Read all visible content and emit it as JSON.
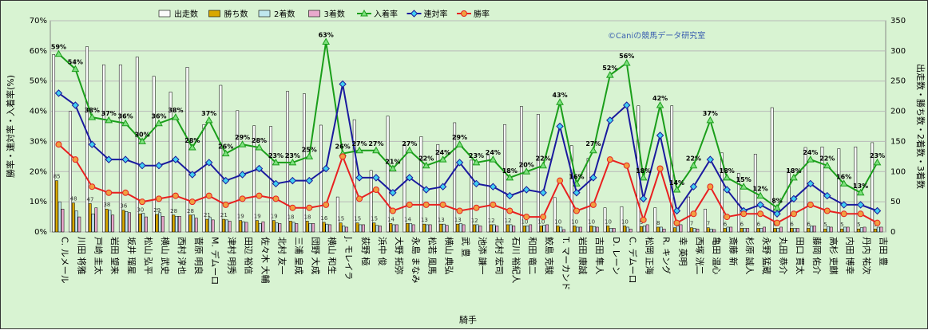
{
  "chart_data": {
    "type": "bar",
    "watermark": "©Caniの競馬データ研究室",
    "xlabel": "騎手",
    "ylabel_left": "勝率・連対率・入着率(%)",
    "ylabel_right": "出走数・勝ち数・2着数・3着数",
    "y_left_lim": [
      0,
      70
    ],
    "y_left_ticks": [
      "0%",
      "10%",
      "20%",
      "30%",
      "40%",
      "50%",
      "60%",
      "70%"
    ],
    "y_right_lim": [
      0,
      350
    ],
    "y_right_ticks": [
      "0",
      "50",
      "100",
      "150",
      "200",
      "250",
      "300",
      "350"
    ],
    "legend": [
      "出走数",
      "勝ち数",
      "2着数",
      "3着数",
      "入着率",
      "連対率",
      "勝率"
    ],
    "colors": {
      "出走数": "#fafafa",
      "勝ち数": "#d8a800",
      "2着数": "#bfe7ee",
      "3着数": "#e8a8cc",
      "入着率": "#1a9e1a",
      "連対率": "#1a1a9e",
      "勝率": "#e82020",
      "bar_border": "#000000",
      "background": "#d8f3d2"
    },
    "categories": [
      "C. ルメール",
      "川田 将雅",
      "戸崎 圭太",
      "岩田 望来",
      "坂井 瑠星",
      "松山 弘平",
      "横山 武史",
      "西村 淳也",
      "菅原 明良",
      "M. デムーロ",
      "津村 明秀",
      "田辺 裕信",
      "佐々木 大輔",
      "北村 友一",
      "三浦 皇成",
      "団野 大成",
      "横山 和生",
      "J. モレイラ",
      "荻野 極",
      "浜中 俊",
      "大野 拓弥",
      "永島 まなみ",
      "松若 風馬",
      "横山 典弘",
      "武 豊",
      "池添 謙一",
      "北村 宏司",
      "石川 裕紀人",
      "和田 竜二",
      "鮫島 克駿",
      "T. マーカンド",
      "岩田 康誠",
      "吉田 隼人",
      "D. レーン",
      "C. デムーロ",
      "松岡 正海",
      "R. キング",
      "幸 英明",
      "西塚 洸二",
      "亀田 温心",
      "斎藤 新",
      "杉原 誠人",
      "永野 猛蔵",
      "丸田 恭介",
      "田口 貫太",
      "藤岡 佑介",
      "高杉 吏麒",
      "内田 博幸",
      "丹内 祐次",
      "吉田 豊"
    ],
    "series": [
      {
        "name": "出走数",
        "axis": "right",
        "values": [
          294,
          200,
          307,
          277,
          277,
          290,
          258,
          232,
          273,
          178,
          243,
          201,
          176,
          175,
          233,
          229,
          177,
          58,
          186,
          102,
          192,
          145,
          158,
          145,
          181,
          119,
          127,
          178,
          208,
          195,
          57,
          143,
          122,
          40,
          42,
          209,
          40,
          209,
          58,
          38,
          131,
          97,
          129,
          206,
          101,
          140,
          141,
          138,
          141,
          148
        ]
      },
      {
        "name": "勝ち数",
        "axis": "right",
        "values": [
          85,
          48,
          47,
          38,
          36,
          30,
          29,
          28,
          28,
          21,
          21,
          19,
          19,
          19,
          18,
          18,
          16,
          15,
          15,
          15,
          14,
          14,
          13,
          13,
          13,
          12,
          12,
          12,
          10,
          10,
          10,
          10,
          10,
          10,
          10,
          9,
          8,
          7,
          7,
          7,
          6,
          6,
          6,
          6,
          6,
          6,
          5,
          5,
          5,
          5
        ]
      },
      {
        "name": "2着数",
        "axis": "right",
        "values": [
          50,
          35,
          30,
          36,
          34,
          31,
          32,
          26,
          28,
          24,
          20,
          17,
          14,
          15,
          16,
          14,
          13,
          10,
          12,
          11,
          12,
          14,
          12,
          13,
          14,
          12,
          12,
          12,
          10,
          11,
          8,
          8,
          9,
          6,
          8,
          10,
          8,
          10,
          6,
          5,
          8,
          6,
          6,
          6,
          6,
          10,
          9,
          8,
          7,
          8
        ]
      },
      {
        "name": "3着数",
        "axis": "right",
        "values": [
          38,
          25,
          40,
          28,
          32,
          25,
          26,
          26,
          23,
          20,
          18,
          16,
          17,
          14,
          14,
          14,
          12,
          8,
          12,
          10,
          12,
          12,
          12,
          11,
          12,
          10,
          10,
          10,
          12,
          12,
          4,
          8,
          8,
          6,
          5,
          12,
          5,
          12,
          5,
          4,
          8,
          6,
          8,
          8,
          6,
          10,
          8,
          8,
          8,
          8
        ]
      },
      {
        "name": "入着率",
        "axis": "left",
        "values": [
          59,
          54,
          38,
          37,
          36,
          30,
          36,
          38,
          28,
          37,
          26,
          29,
          28,
          23,
          23,
          25,
          63,
          26,
          27,
          27,
          21,
          27,
          22,
          24,
          29,
          23,
          24,
          18,
          20,
          22,
          43,
          16,
          27,
          52,
          56,
          18,
          42,
          14,
          22,
          37,
          18,
          15,
          12,
          8,
          18,
          24,
          22,
          16,
          13,
          23
        ]
      },
      {
        "name": "連対率",
        "axis": "left",
        "values": [
          46,
          42,
          29,
          24,
          24,
          22,
          22,
          24,
          19,
          23,
          17,
          19,
          21,
          16,
          17,
          17,
          21,
          49,
          18,
          18,
          13,
          18,
          14,
          15,
          23,
          16,
          15,
          12,
          14,
          13,
          35,
          13,
          18,
          37,
          42,
          11,
          32,
          7,
          15,
          24,
          14,
          7,
          9,
          6,
          11,
          16,
          12,
          9,
          9,
          7
        ]
      },
      {
        "name": "勝率",
        "axis": "left",
        "values": [
          29,
          24,
          15,
          13,
          13,
          10,
          11,
          12,
          10,
          12,
          9,
          11,
          12,
          11,
          8,
          8,
          9,
          25,
          11,
          14,
          7,
          9,
          9,
          9,
          7,
          8,
          9,
          7,
          5,
          5,
          17,
          7,
          9,
          24,
          22,
          4,
          21,
          3,
          6,
          15,
          5,
          6,
          6,
          3,
          6,
          9,
          7,
          6,
          6,
          3
        ]
      }
    ],
    "rate_labels_top": [
      "59%",
      "54%",
      "38%",
      "37%",
      "36%",
      "30%",
      "36%",
      "38%",
      "28%",
      "37%",
      "26%",
      "29%",
      "28%",
      "23%",
      "23%",
      "25%",
      "63%",
      "26%",
      "27%",
      "27%",
      "21%",
      "27%",
      "22%",
      "24%",
      "29%",
      "23%",
      "24%",
      "18%",
      "20%",
      "22%",
      "43%",
      "16%",
      "27%",
      "52%",
      "56%",
      "18%",
      "42%",
      "14%",
      "22%",
      "37%",
      "18%",
      "15%",
      "12%",
      "8%",
      "18%",
      "24%",
      "22%",
      "16%",
      "13%",
      "23%"
    ],
    "win_labels": [
      "85",
      "48",
      "47",
      "38",
      "36",
      "30",
      "29",
      "28",
      "28",
      "21",
      "21",
      "19",
      "19",
      "19",
      "18",
      "18",
      "16",
      "15",
      "15",
      "15",
      "14",
      "14",
      "13",
      "13",
      "13",
      "12",
      "12",
      "12",
      "10",
      "10",
      "10",
      "10",
      "10",
      "10",
      "10",
      "9",
      "8",
      "7",
      "7",
      "7",
      "6",
      "6",
      "6",
      "6",
      "6",
      "6",
      "5",
      "5",
      "5",
      "5"
    ],
    "grid": true,
    "legend_position": "top"
  }
}
